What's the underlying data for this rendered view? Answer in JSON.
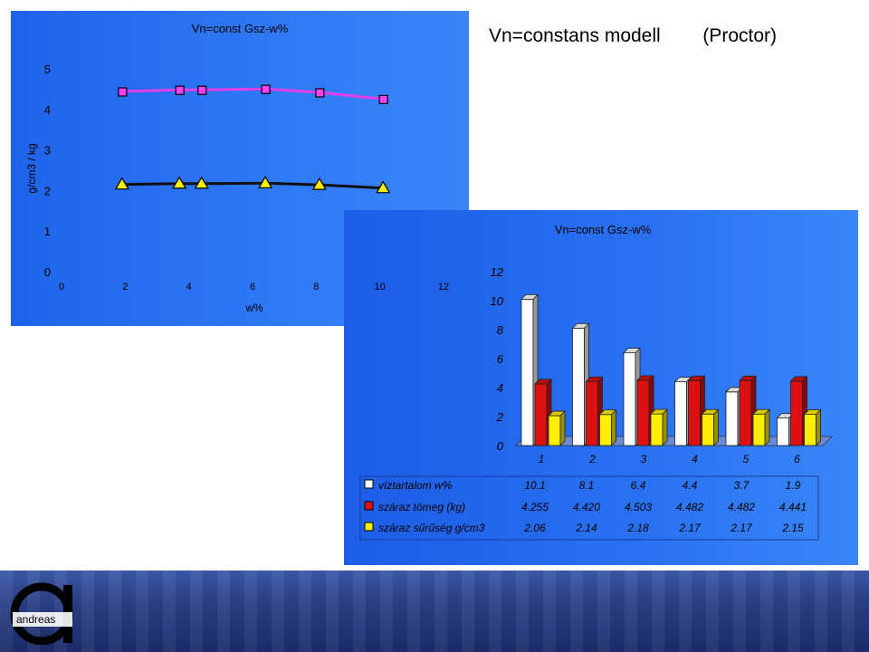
{
  "slide": {
    "title": "Vn=constans modell        (Proctor)"
  },
  "chart_data": [
    {
      "type": "line",
      "title": "Vn=const    Gsz-w%",
      "xlabel": "w%",
      "ylabel": "g/cm3  /  kg",
      "xlim": [
        0,
        12
      ],
      "ylim": [
        0,
        5
      ],
      "x_ticks": [
        "0",
        "2",
        "4",
        "6",
        "8",
        "10",
        "12"
      ],
      "y_ticks": [
        "0",
        "1",
        "2",
        "3",
        "4",
        "5"
      ],
      "legend": "none",
      "grid": false,
      "series": [
        {
          "x": [
            1.9,
            3.7,
            4.4,
            6.4,
            8.1,
            10.1
          ],
          "values": [
            4.441,
            4.482,
            4.482,
            4.503,
            4.42,
            4.255
          ],
          "color": "#e040e8",
          "marker": "square"
        },
        {
          "x": [
            1.9,
            3.7,
            4.4,
            6.4,
            8.1,
            10.1
          ],
          "values": [
            2.15,
            2.17,
            2.17,
            2.18,
            2.14,
            2.06
          ],
          "color": "#111111",
          "marker": "triangle"
        }
      ]
    },
    {
      "type": "bar",
      "title": "Vn=const    Gsz-w%",
      "categories": [
        "1",
        "2",
        "3",
        "4",
        "5",
        "6"
      ],
      "y_ticks": [
        "0",
        "2",
        "4",
        "6",
        "8",
        "10",
        "12"
      ],
      "ylim": [
        0,
        12
      ],
      "grid": false,
      "series": [
        {
          "name": "víztartalom w%",
          "values": [
            10.1,
            8.1,
            6.4,
            4.4,
            3.7,
            1.9
          ],
          "labels": [
            "10.1",
            "8.1",
            "6.4",
            "4.4",
            "3.7",
            "1.9"
          ],
          "color": "#ffffff"
        },
        {
          "name": "száraz tömeg (kg)",
          "values": [
            4.255,
            4.42,
            4.503,
            4.482,
            4.482,
            4.441
          ],
          "labels": [
            "4.255",
            "4.420",
            "4.503",
            "4.482",
            "4.482",
            "4.441"
          ],
          "color": "#dd1111"
        },
        {
          "name": "száraz sűrűség g/cm3",
          "values": [
            2.06,
            2.14,
            2.18,
            2.17,
            2.17,
            2.15
          ],
          "labels": [
            "2.06",
            "2.14",
            "2.18",
            "2.17",
            "2.17",
            "2.15"
          ],
          "color": "#ffee00"
        }
      ]
    }
  ],
  "footer": {
    "logo_text": "andreas"
  }
}
